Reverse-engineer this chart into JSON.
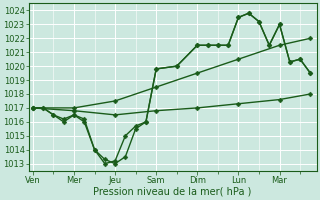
{
  "xlabel": "Pression niveau de la mer( hPa )",
  "ylim": [
    1012.5,
    1024.5
  ],
  "yticks": [
    1013,
    1014,
    1015,
    1016,
    1017,
    1018,
    1019,
    1020,
    1021,
    1022,
    1023,
    1024
  ],
  "day_labels": [
    "Ven",
    "Mer",
    "Jeu",
    "Sam",
    "Dim",
    "Lun",
    "Mar"
  ],
  "day_positions": [
    0,
    2,
    4,
    6,
    8,
    10,
    12
  ],
  "xlim": [
    -0.2,
    13.8
  ],
  "background_color": "#cce8df",
  "grid_color": "#ffffff",
  "line_color": "#1a5c1a",
  "series": [
    {
      "x": [
        0,
        0.5,
        1,
        1.5,
        2,
        2.5,
        3,
        3.5,
        4,
        4.5,
        5,
        5.5,
        6,
        7,
        8,
        8.5,
        9,
        9.5,
        10,
        10.5,
        11,
        11.5,
        12,
        12.5,
        13,
        13.5
      ],
      "y": [
        1017,
        1017,
        1016.5,
        1016,
        1016.5,
        1016.2,
        1014,
        1013.3,
        1013,
        1013.5,
        1015.5,
        1016,
        1019.8,
        1020,
        1021.5,
        1021.5,
        1021.5,
        1021.5,
        1023.5,
        1023.8,
        1023.2,
        1021.5,
        1023,
        1020.3,
        1020.5,
        1019.5
      ]
    },
    {
      "x": [
        0,
        0.5,
        1,
        1.5,
        2,
        2.5,
        3,
        3.5,
        4,
        4.5,
        5,
        5.5,
        6,
        7,
        8,
        8.5,
        9,
        9.5,
        10,
        10.5,
        11,
        11.5,
        12,
        12.5,
        13,
        13.5
      ],
      "y": [
        1017,
        1017,
        1016.5,
        1016.2,
        1016.5,
        1016,
        1014,
        1013,
        1013.2,
        1015,
        1015.7,
        1016,
        1019.8,
        1020,
        1021.5,
        1021.5,
        1021.5,
        1021.5,
        1023.5,
        1023.8,
        1023.2,
        1021.5,
        1023,
        1020.3,
        1020.5,
        1019.5
      ]
    },
    {
      "x": [
        0,
        2,
        4,
        6,
        8,
        10,
        12,
        13.5
      ],
      "y": [
        1017,
        1017,
        1017.5,
        1018.5,
        1019.5,
        1020.5,
        1021.5,
        1022
      ]
    },
    {
      "x": [
        0,
        2,
        4,
        6,
        8,
        10,
        12,
        13.5
      ],
      "y": [
        1017,
        1016.8,
        1016.5,
        1016.8,
        1017,
        1017.3,
        1017.6,
        1018
      ]
    }
  ],
  "marker_size": 2.5,
  "line_width": 1.0
}
